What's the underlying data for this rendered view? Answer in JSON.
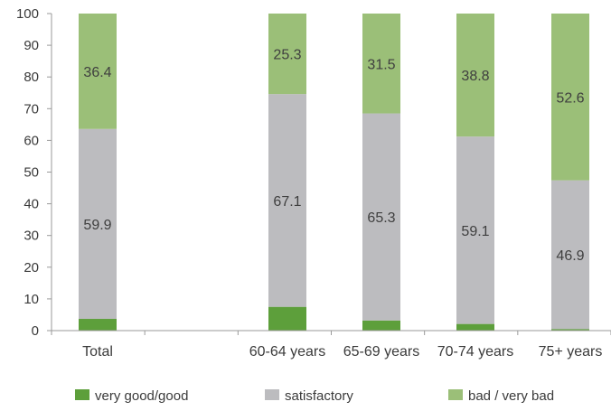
{
  "chart_data": {
    "type": "bar",
    "stacked": true,
    "categories": [
      "Total",
      "",
      "60-64 years",
      "65-69 years",
      "70-74 years",
      "75+ years"
    ],
    "series": [
      {
        "name": "very good/good",
        "color": "#5d9f3b",
        "values": [
          3.7,
          null,
          7.5,
          3.2,
          2.1,
          0.5
        ],
        "labels": [
          "",
          "",
          "",
          "",
          "",
          ""
        ]
      },
      {
        "name": "satisfactory",
        "color": "#bcbcbf",
        "values": [
          59.9,
          null,
          67.1,
          65.3,
          59.1,
          46.9
        ],
        "labels": [
          "59.9",
          "",
          "67.1",
          "65.3",
          "59.1",
          "46.9"
        ]
      },
      {
        "name": "bad / very bad",
        "color": "#9bbf78",
        "values": [
          36.4,
          null,
          25.3,
          31.5,
          38.8,
          52.6
        ],
        "labels": [
          "36.4",
          "",
          "25.3",
          "31.5",
          "38.8",
          "52.6"
        ]
      }
    ],
    "ylim": [
      0,
      100
    ],
    "yticks": [
      0,
      10,
      20,
      30,
      40,
      50,
      60,
      70,
      80,
      90,
      100
    ],
    "grid": false,
    "legend_position": "bottom"
  }
}
